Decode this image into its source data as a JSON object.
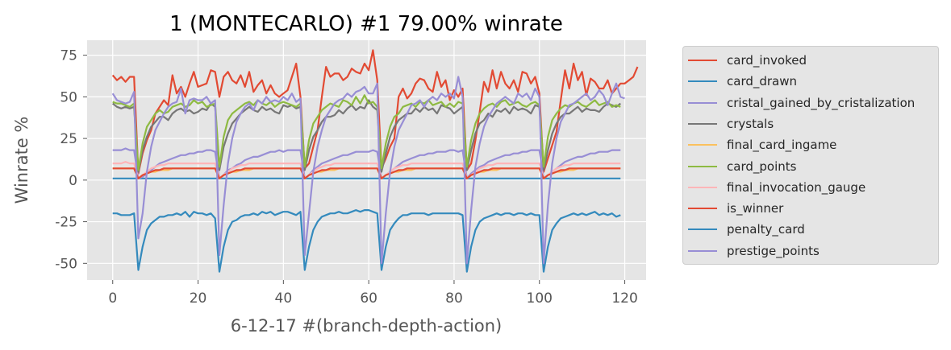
{
  "chart_data": {
    "type": "line",
    "title": "1 (MONTECARLO) #1 79.00% winrate",
    "xlabel": "6-12-17 #(branch-depth-action)",
    "ylabel": "Winrate %",
    "xlim": [
      -6,
      125
    ],
    "ylim": [
      -60,
      84
    ],
    "xticks": [
      0,
      20,
      40,
      60,
      80,
      100,
      120
    ],
    "yticks": [
      -50,
      -25,
      0,
      25,
      50,
      75
    ],
    "grid": true,
    "legend_position": "right-outside",
    "series": [
      {
        "name": "card_invoked",
        "color": "#E24A33",
        "values": [
          63,
          60,
          62,
          59,
          62,
          62,
          4,
          16,
          24,
          30,
          40,
          44,
          48,
          45,
          63,
          52,
          56,
          50,
          58,
          65,
          56,
          57,
          58,
          66,
          65,
          50,
          62,
          65,
          60,
          58,
          63,
          56,
          65,
          53,
          57,
          60,
          52,
          57,
          52,
          50,
          52,
          54,
          62,
          70,
          50,
          7,
          10,
          20,
          30,
          50,
          68,
          62,
          64,
          64,
          60,
          62,
          67,
          65,
          64,
          70,
          66,
          78,
          60,
          7,
          13,
          20,
          25,
          50,
          55,
          49,
          52,
          58,
          61,
          60,
          55,
          53,
          65,
          56,
          60,
          48,
          54,
          50,
          55,
          6,
          10,
          24,
          41,
          59,
          53,
          66,
          55,
          65,
          58,
          55,
          60,
          53,
          65,
          64,
          58,
          62,
          52,
          5,
          13,
          21,
          29,
          48,
          66,
          55,
          70,
          60,
          65,
          51,
          61,
          59,
          55,
          55,
          60,
          52,
          55,
          58,
          58,
          60,
          62,
          68
        ]
      },
      {
        "name": "card_drawn",
        "color": "#348ABD",
        "values": [
          1,
          1,
          1,
          1,
          1,
          1,
          1,
          1,
          1,
          1,
          1,
          1,
          1,
          1,
          1,
          1,
          1,
          1,
          1,
          1,
          1,
          1,
          1,
          1,
          1,
          1,
          1,
          1,
          1,
          1,
          1,
          1,
          1,
          1,
          1,
          1,
          1,
          1,
          1,
          1,
          1,
          1,
          1,
          1,
          1,
          1,
          1,
          1,
          1,
          1,
          1,
          1,
          1,
          1,
          1,
          1,
          1,
          1,
          1,
          1,
          1,
          1,
          1,
          1,
          1,
          1,
          1,
          1,
          1,
          1,
          1,
          1,
          1,
          1,
          1,
          1,
          1,
          1,
          1,
          1,
          1,
          1,
          1,
          1,
          1,
          1,
          1,
          1,
          1,
          1,
          1,
          1,
          1,
          1,
          1,
          1,
          1,
          1,
          1,
          1,
          1,
          1,
          1,
          1,
          1,
          1,
          1,
          1,
          1,
          1,
          1,
          1,
          1,
          1,
          1,
          1,
          1,
          1,
          1,
          1
        ]
      },
      {
        "name": "cristal_gained_by_cristalization",
        "color": "#988ED5",
        "values": [
          18,
          18,
          18,
          19,
          18,
          18,
          1,
          2,
          4,
          6,
          8,
          10,
          11,
          12,
          13,
          14,
          15,
          15,
          16,
          16,
          17,
          17,
          18,
          18,
          17,
          1,
          3,
          6,
          7,
          9,
          10,
          12,
          13,
          14,
          14,
          15,
          16,
          17,
          17,
          18,
          17,
          18,
          18,
          18,
          18,
          1,
          3,
          6,
          8,
          10,
          11,
          12,
          13,
          14,
          15,
          15,
          16,
          17,
          17,
          17,
          17,
          18,
          17,
          1,
          3,
          5,
          7,
          9,
          11,
          12,
          13,
          14,
          15,
          15,
          16,
          16,
          17,
          17,
          17,
          18,
          18,
          17,
          18,
          1,
          4,
          6,
          8,
          9,
          11,
          12,
          13,
          14,
          15,
          15,
          16,
          16,
          17,
          17,
          18,
          18,
          18,
          1,
          3,
          5,
          7,
          9,
          11,
          12,
          13,
          14,
          14,
          15,
          16,
          16,
          17,
          17,
          17,
          18,
          18,
          18
        ]
      },
      {
        "name": "crystals",
        "color": "#777777",
        "values": [
          46,
          44,
          43,
          44,
          43,
          44,
          5,
          18,
          26,
          32,
          35,
          38,
          38,
          36,
          40,
          42,
          43,
          41,
          42,
          40,
          41,
          43,
          42,
          46,
          44,
          6,
          20,
          28,
          34,
          37,
          40,
          42,
          44,
          42,
          41,
          44,
          42,
          43,
          41,
          40,
          45,
          44,
          45,
          43,
          44,
          6,
          18,
          26,
          30,
          35,
          38,
          38,
          39,
          42,
          40,
          43,
          45,
          42,
          44,
          43,
          48,
          44,
          42,
          5,
          16,
          26,
          32,
          36,
          38,
          40,
          40,
          43,
          41,
          44,
          42,
          43,
          40,
          45,
          44,
          43,
          40,
          42,
          44,
          6,
          18,
          28,
          34,
          36,
          40,
          38,
          42,
          41,
          43,
          40,
          44,
          42,
          43,
          42,
          40,
          45,
          44,
          6,
          18,
          28,
          34,
          38,
          40,
          40,
          42,
          44,
          41,
          43,
          42,
          42,
          41,
          44,
          46,
          45,
          44,
          46
        ]
      },
      {
        "name": "final_card_ingame",
        "color": "#FBC15E",
        "values": [
          7,
          7,
          7,
          7,
          7,
          7,
          1,
          3,
          4,
          5,
          5,
          6,
          6,
          6,
          7,
          7,
          7,
          7,
          7,
          7,
          7,
          7,
          7,
          7,
          7,
          1,
          3,
          4,
          5,
          5,
          6,
          6,
          6,
          7,
          7,
          7,
          7,
          7,
          7,
          7,
          7,
          7,
          7,
          7,
          7,
          1,
          3,
          4,
          5,
          5,
          6,
          6,
          6,
          7,
          7,
          7,
          7,
          7,
          7,
          7,
          7,
          7,
          7,
          1,
          3,
          4,
          5,
          5,
          6,
          6,
          6,
          7,
          7,
          7,
          7,
          7,
          7,
          7,
          7,
          7,
          7,
          7,
          7,
          1,
          3,
          4,
          5,
          5,
          6,
          6,
          6,
          7,
          7,
          7,
          7,
          7,
          7,
          7,
          7,
          7,
          7,
          1,
          3,
          4,
          5,
          5,
          6,
          6,
          6,
          7,
          7,
          7,
          7,
          7,
          7,
          7,
          7,
          7,
          7,
          7
        ]
      },
      {
        "name": "card_points",
        "color": "#8EBA42",
        "values": [
          47,
          46,
          46,
          45,
          44,
          46,
          6,
          22,
          32,
          36,
          40,
          42,
          40,
          41,
          44,
          45,
          46,
          44,
          45,
          48,
          46,
          47,
          44,
          45,
          46,
          8,
          26,
          36,
          40,
          42,
          44,
          46,
          47,
          45,
          48,
          46,
          45,
          47,
          44,
          46,
          47,
          46,
          45,
          44,
          46,
          8,
          24,
          34,
          38,
          42,
          44,
          46,
          45,
          44,
          48,
          47,
          45,
          50,
          46,
          51,
          46,
          47,
          44,
          7,
          22,
          32,
          38,
          40,
          44,
          45,
          46,
          44,
          47,
          46,
          48,
          45,
          46,
          47,
          44,
          46,
          44,
          47,
          46,
          8,
          24,
          34,
          40,
          43,
          45,
          46,
          44,
          47,
          48,
          45,
          46,
          47,
          45,
          44,
          46,
          47,
          45,
          8,
          26,
          36,
          40,
          43,
          45,
          44,
          46,
          47,
          45,
          44,
          46,
          48,
          45,
          46,
          47,
          44,
          45,
          44
        ]
      },
      {
        "name": "final_invocation_gauge",
        "color": "#FFB5B8",
        "values": [
          10,
          10,
          10,
          11,
          10,
          10,
          1,
          3,
          5,
          7,
          8,
          9,
          9,
          10,
          10,
          10,
          10,
          10,
          10,
          10,
          10,
          10,
          10,
          10,
          10,
          1,
          3,
          5,
          7,
          8,
          9,
          9,
          10,
          10,
          10,
          10,
          10,
          10,
          10,
          10,
          10,
          10,
          10,
          10,
          10,
          1,
          3,
          5,
          7,
          8,
          9,
          9,
          10,
          10,
          10,
          10,
          10,
          10,
          10,
          10,
          10,
          10,
          10,
          1,
          3,
          5,
          7,
          8,
          9,
          9,
          10,
          10,
          10,
          10,
          10,
          10,
          10,
          10,
          10,
          10,
          10,
          10,
          10,
          1,
          3,
          5,
          7,
          8,
          9,
          9,
          10,
          10,
          10,
          10,
          10,
          10,
          10,
          10,
          10,
          10,
          10,
          1,
          3,
          5,
          7,
          8,
          9,
          9,
          10,
          10,
          10,
          10,
          10,
          10,
          10,
          10,
          10,
          10,
          10,
          10
        ]
      },
      {
        "name": "is_winner",
        "color": "#E24A33",
        "values": [
          7,
          7,
          7,
          7,
          7,
          7,
          1,
          3,
          4,
          5,
          6,
          6,
          7,
          7,
          7,
          7,
          7,
          7,
          7,
          7,
          7,
          7,
          7,
          7,
          7,
          1,
          3,
          4,
          5,
          6,
          6,
          7,
          7,
          7,
          7,
          7,
          7,
          7,
          7,
          7,
          7,
          7,
          7,
          7,
          7,
          1,
          3,
          4,
          5,
          6,
          6,
          7,
          7,
          7,
          7,
          7,
          7,
          7,
          7,
          7,
          7,
          7,
          7,
          1,
          3,
          4,
          5,
          6,
          6,
          7,
          7,
          7,
          7,
          7,
          7,
          7,
          7,
          7,
          7,
          7,
          7,
          7,
          7,
          1,
          3,
          4,
          5,
          6,
          6,
          7,
          7,
          7,
          7,
          7,
          7,
          7,
          7,
          7,
          7,
          7,
          7,
          1,
          3,
          4,
          5,
          6,
          6,
          7,
          7,
          7,
          7,
          7,
          7,
          7,
          7,
          7,
          7,
          7,
          7,
          7
        ]
      },
      {
        "name": "penalty_card",
        "color": "#348ABD",
        "values": [
          -20,
          -20,
          -21,
          -21,
          -21,
          -20,
          -54,
          -40,
          -30,
          -26,
          -24,
          -22,
          -22,
          -21,
          -21,
          -20,
          -21,
          -19,
          -22,
          -19,
          -20,
          -20,
          -21,
          -20,
          -23,
          -55,
          -40,
          -30,
          -25,
          -24,
          -22,
          -21,
          -21,
          -20,
          -21,
          -19,
          -20,
          -19,
          -21,
          -20,
          -19,
          -19,
          -20,
          -21,
          -19,
          -54,
          -40,
          -30,
          -25,
          -22,
          -21,
          -20,
          -20,
          -19,
          -20,
          -20,
          -19,
          -18,
          -19,
          -18,
          -18,
          -19,
          -20,
          -54,
          -40,
          -30,
          -26,
          -23,
          -21,
          -21,
          -20,
          -20,
          -20,
          -20,
          -21,
          -20,
          -20,
          -20,
          -20,
          -20,
          -20,
          -20,
          -21,
          -55,
          -40,
          -30,
          -25,
          -23,
          -22,
          -21,
          -20,
          -21,
          -20,
          -20,
          -21,
          -20,
          -20,
          -21,
          -20,
          -21,
          -21,
          -55,
          -40,
          -30,
          -26,
          -23,
          -22,
          -21,
          -20,
          -21,
          -20,
          -21,
          -20,
          -19,
          -21,
          -20,
          -21,
          -20,
          -22,
          -21
        ]
      },
      {
        "name": "prestige_points",
        "color": "#988ED5",
        "values": [
          52,
          48,
          47,
          46,
          47,
          53,
          -35,
          -20,
          5,
          20,
          30,
          35,
          40,
          44,
          46,
          47,
          55,
          40,
          48,
          49,
          48,
          48,
          50,
          46,
          48,
          -45,
          -15,
          10,
          25,
          35,
          40,
          44,
          46,
          42,
          48,
          46,
          50,
          47,
          48,
          47,
          50,
          48,
          52,
          47,
          49,
          -45,
          -20,
          5,
          20,
          30,
          38,
          42,
          46,
          48,
          49,
          52,
          50,
          53,
          54,
          56,
          52,
          52,
          58,
          -50,
          -20,
          5,
          20,
          30,
          35,
          40,
          45,
          46,
          48,
          44,
          48,
          50,
          48,
          52,
          50,
          52,
          49,
          62,
          50,
          -50,
          -18,
          8,
          22,
          32,
          38,
          42,
          46,
          48,
          50,
          48,
          46,
          52,
          50,
          52,
          48,
          55,
          50,
          -50,
          -15,
          10,
          25,
          35,
          40,
          45,
          46,
          48,
          50,
          52,
          48,
          50,
          54,
          51,
          45,
          52,
          58,
          50,
          49
        ]
      }
    ]
  }
}
